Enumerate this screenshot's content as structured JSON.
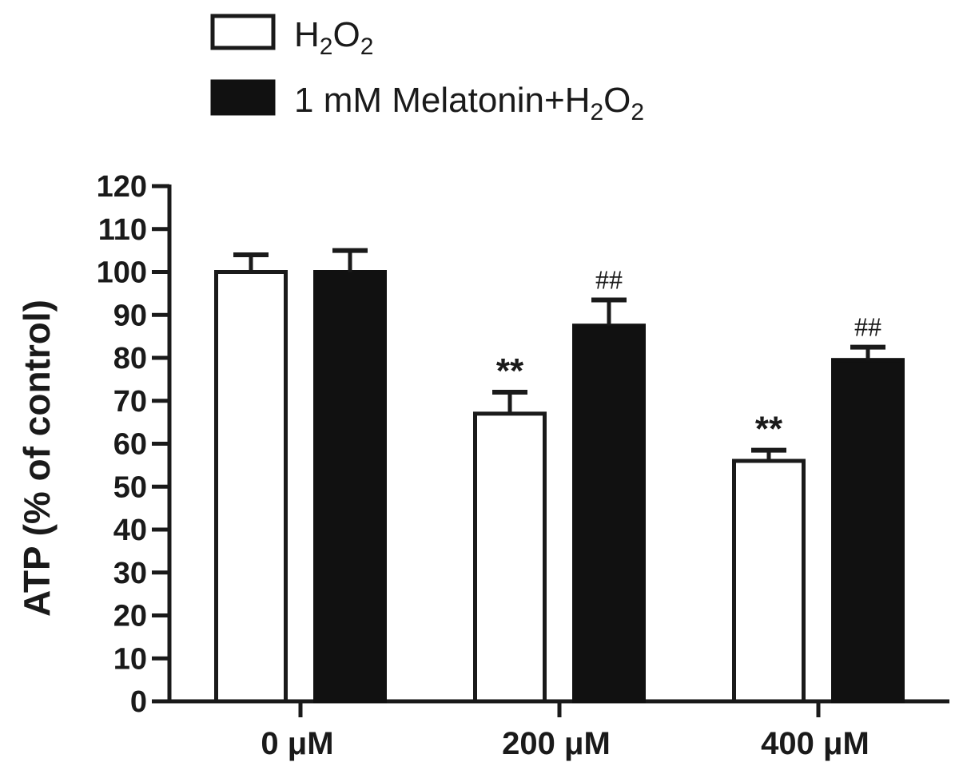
{
  "chart_data": {
    "type": "bar",
    "title": "",
    "ylabel": "ATP (% of control)",
    "xlabel": "",
    "ylim": [
      0,
      120
    ],
    "yticks": [
      0,
      10,
      20,
      30,
      40,
      50,
      60,
      70,
      80,
      90,
      100,
      110,
      120
    ],
    "categories": [
      "0 μM",
      "200 μM",
      "400 μM"
    ],
    "legend_position": "top-left",
    "series": [
      {
        "name": "H2O2",
        "legend_main": "H",
        "legend_sub1": "2",
        "legend_mid": "O",
        "legend_sub2": "2",
        "fill": "#ffffff",
        "stroke": "#1a1a1a",
        "values": [
          100,
          67,
          56
        ],
        "errors": [
          4,
          5,
          2.5
        ],
        "annotations": [
          "",
          "**",
          "**"
        ]
      },
      {
        "name": "1 mM Melatonin+H2O2",
        "legend_main": "1 mM Melatonin+H",
        "legend_sub1": "2",
        "legend_mid": "O",
        "legend_sub2": "2",
        "fill": "#111111",
        "stroke": "#111111",
        "values": [
          100,
          87.5,
          79.5
        ],
        "errors": [
          5,
          6,
          3
        ],
        "annotations": [
          "",
          "##",
          "##"
        ]
      }
    ]
  }
}
